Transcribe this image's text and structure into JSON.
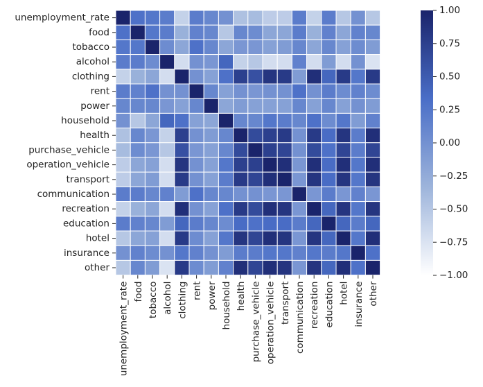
{
  "chart_data": {
    "type": "heatmap",
    "title": "",
    "xlabel": "",
    "ylabel": "",
    "labels": [
      "unemployment_rate",
      "food",
      "tobacco",
      "alcohol",
      "clothing",
      "rent",
      "power",
      "household",
      "health",
      "purchase_vehicle",
      "operation_vehicle",
      "transport",
      "communication",
      "recreation",
      "education",
      "hotel",
      "insurance",
      "other"
    ],
    "values": [
      [
        1.0,
        0.3,
        0.25,
        0.2,
        -0.6,
        0.2,
        0.1,
        0.0,
        -0.45,
        -0.4,
        -0.55,
        -0.55,
        0.2,
        -0.6,
        0.2,
        -0.5,
        0.0,
        -0.5
      ],
      [
        0.3,
        1.0,
        0.25,
        0.2,
        -0.3,
        0.15,
        0.1,
        -0.5,
        0.1,
        0.05,
        -0.2,
        -0.2,
        0.2,
        -0.3,
        0.15,
        -0.2,
        0.15,
        0.1
      ],
      [
        0.25,
        0.25,
        1.0,
        0.05,
        -0.2,
        0.3,
        0.1,
        -0.2,
        -0.05,
        -0.05,
        -0.15,
        -0.1,
        0.1,
        -0.2,
        0.1,
        -0.15,
        0.05,
        -0.1
      ],
      [
        0.2,
        0.2,
        0.05,
        1.0,
        -0.7,
        0.0,
        -0.05,
        0.4,
        -0.6,
        -0.5,
        -0.7,
        -0.7,
        0.15,
        -0.7,
        -0.1,
        -0.7,
        0.0,
        -0.75
      ],
      [
        -0.6,
        -0.3,
        -0.2,
        -0.7,
        1.0,
        0.0,
        -0.15,
        0.3,
        0.75,
        0.6,
        0.85,
        0.8,
        -0.1,
        0.9,
        0.4,
        0.8,
        0.25,
        0.8
      ],
      [
        0.2,
        0.15,
        0.3,
        0.0,
        0.0,
        1.0,
        0.1,
        -0.15,
        0.0,
        -0.05,
        0.0,
        0.0,
        0.3,
        0.0,
        0.2,
        0.05,
        0.15,
        0.05
      ],
      [
        0.1,
        0.1,
        0.1,
        -0.05,
        -0.15,
        0.1,
        1.0,
        -0.2,
        -0.1,
        -0.15,
        -0.15,
        -0.15,
        0.1,
        -0.15,
        0.1,
        -0.15,
        0.0,
        -0.1
      ],
      [
        0.0,
        -0.5,
        -0.2,
        0.4,
        0.3,
        -0.15,
        -0.2,
        1.0,
        0.1,
        0.1,
        0.25,
        0.2,
        0.1,
        0.3,
        0.05,
        0.25,
        -0.1,
        0.15
      ],
      [
        -0.45,
        0.1,
        -0.05,
        -0.6,
        0.75,
        0.0,
        -0.1,
        0.1,
        1.0,
        0.65,
        0.75,
        0.8,
        0.0,
        0.8,
        0.35,
        0.85,
        0.2,
        0.9
      ],
      [
        -0.4,
        0.05,
        -0.05,
        -0.5,
        0.6,
        -0.05,
        -0.15,
        0.1,
        0.65,
        1.0,
        0.75,
        0.7,
        0.0,
        0.65,
        0.3,
        0.7,
        0.2,
        0.7
      ],
      [
        -0.55,
        -0.2,
        -0.15,
        -0.7,
        0.85,
        0.0,
        -0.15,
        0.25,
        0.75,
        0.75,
        1.0,
        0.9,
        -0.05,
        0.9,
        0.35,
        0.9,
        0.25,
        0.9
      ],
      [
        -0.55,
        -0.2,
        -0.1,
        -0.7,
        0.8,
        0.0,
        -0.15,
        0.2,
        0.8,
        0.7,
        0.9,
        1.0,
        -0.05,
        0.85,
        0.35,
        0.85,
        0.25,
        0.85
      ],
      [
        0.2,
        0.2,
        0.1,
        0.15,
        -0.1,
        0.3,
        0.1,
        0.1,
        0.0,
        0.0,
        -0.05,
        -0.05,
        1.0,
        -0.05,
        0.2,
        -0.05,
        0.15,
        -0.05
      ],
      [
        -0.6,
        -0.3,
        -0.2,
        -0.7,
        0.9,
        0.0,
        -0.15,
        0.3,
        0.8,
        0.65,
        0.9,
        0.85,
        -0.05,
        1.0,
        0.4,
        0.85,
        0.25,
        0.85
      ],
      [
        0.2,
        0.15,
        0.1,
        -0.1,
        0.4,
        0.2,
        0.1,
        0.05,
        0.35,
        0.3,
        0.35,
        0.35,
        0.2,
        0.4,
        1.0,
        0.4,
        0.2,
        0.4
      ],
      [
        -0.5,
        -0.2,
        -0.15,
        -0.7,
        0.8,
        0.05,
        -0.15,
        0.25,
        0.85,
        0.7,
        0.9,
        0.85,
        -0.05,
        0.85,
        0.4,
        1.0,
        0.25,
        0.9
      ],
      [
        0.0,
        0.15,
        0.05,
        0.0,
        0.25,
        0.15,
        0.0,
        -0.1,
        0.2,
        0.2,
        0.25,
        0.25,
        0.15,
        0.25,
        0.2,
        0.25,
        1.0,
        0.3
      ],
      [
        -0.5,
        0.1,
        -0.1,
        -0.75,
        0.8,
        0.05,
        -0.1,
        0.15,
        0.9,
        0.7,
        0.9,
        0.85,
        -0.05,
        0.85,
        0.4,
        0.9,
        0.3,
        1.0
      ]
    ],
    "vmin": -1.0,
    "vmax": 1.0,
    "colorbar_ticks": [
      1.0,
      0.75,
      0.5,
      0.25,
      0.0,
      -0.25,
      -0.5,
      -0.75,
      -1.0
    ],
    "colorbar_tick_labels": [
      "1.00",
      "0.75",
      "0.50",
      "0.25",
      "0.00",
      "−0.25",
      "−0.50",
      "−0.75",
      "−1.00"
    ],
    "colormap": [
      "#ffffff",
      "#9db4db",
      "#4a6ec7",
      "#1a246b"
    ],
    "cell_border_color": "#ffffff",
    "grid": false,
    "legend": "colorbar-right"
  }
}
